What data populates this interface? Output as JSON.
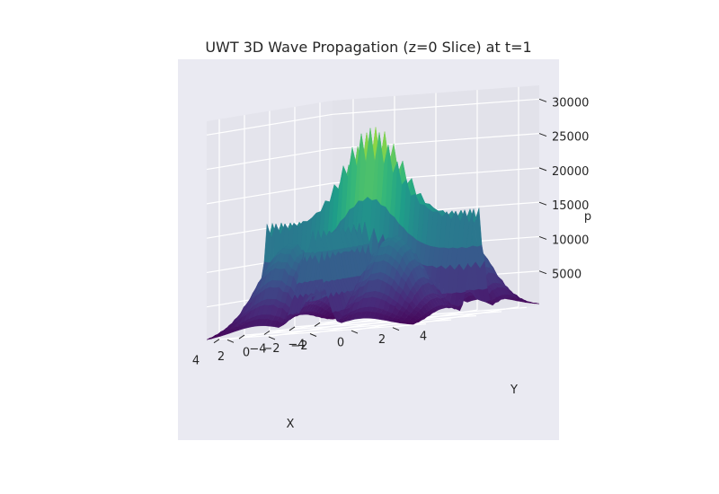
{
  "chart_data": {
    "type": "surface",
    "title": "UWT 3D Wave Propagation (z=0 Slice) at t=1",
    "xlabel": "X",
    "ylabel": "Y",
    "zlabel": "p",
    "xlim": [
      -5,
      5
    ],
    "ylim": [
      -5,
      5
    ],
    "zlim": [
      0,
      32000
    ],
    "x_ticks": [
      -4,
      -2,
      0,
      2,
      4
    ],
    "y_ticks": [
      -4,
      -2,
      0,
      2,
      4
    ],
    "z_ticks": [
      5000,
      10000,
      15000,
      20000,
      25000,
      30000
    ],
    "x_tick_labels": [
      "−4",
      "−2",
      "0",
      "2",
      "4"
    ],
    "y_tick_labels": [
      "−4",
      "−2",
      "0",
      "2",
      "4"
    ],
    "z_tick_labels": [
      "5000",
      "10000",
      "15000",
      "20000",
      "25000",
      "30000"
    ],
    "colormap": "viridis",
    "surface": {
      "description_components": [
        {
          "kind": "ridge_along_y",
          "center_x": 0,
          "amplitude": 31000
        },
        {
          "kind": "ridge_along_x",
          "center_y": 0,
          "amplitude": 15000
        },
        {
          "kind": "mound",
          "center": [
            2.5,
            2.5
          ],
          "amplitude": 14000
        },
        {
          "kind": "mound",
          "center": [
            -2.5,
            2.5
          ],
          "amplitude": 14000
        },
        {
          "kind": "mound",
          "center": [
            2.5,
            -2.5
          ],
          "amplitude": 14000
        },
        {
          "kind": "mound",
          "center": [
            -2.5,
            -2.5
          ],
          "amplitude": 12000
        }
      ],
      "oscillation": "high-frequency spiky texture"
    },
    "grid": true,
    "pane_color": "#eaeaf2",
    "background": "#ffffff",
    "grid_color": "#ffffff"
  }
}
